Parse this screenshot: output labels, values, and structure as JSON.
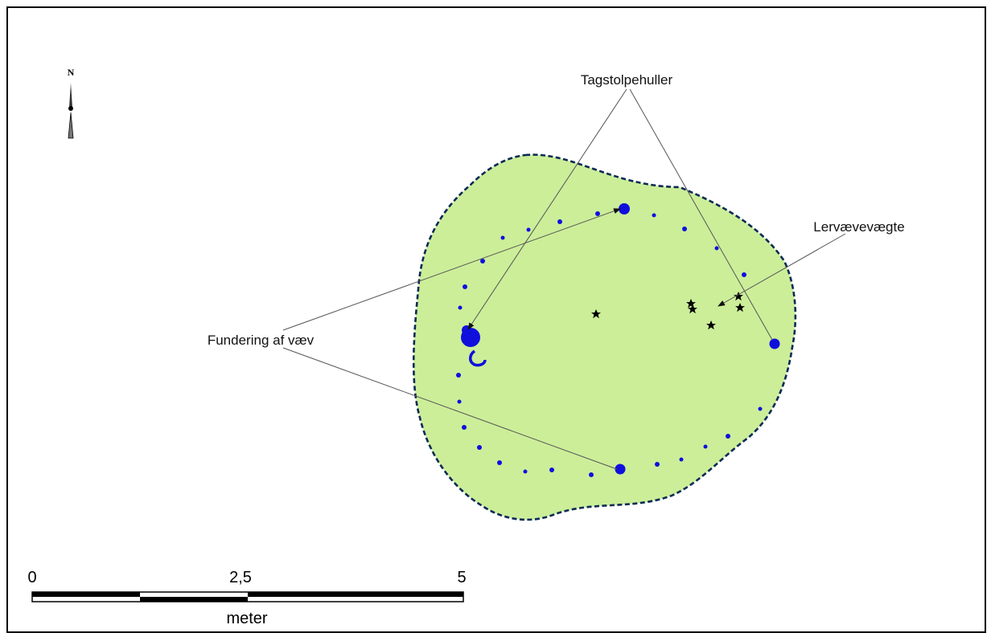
{
  "map": {
    "north_label": "N",
    "annotations": {
      "roof_posts": "Tagstolpehuller",
      "loom_weights": "Lervævevægte",
      "loom_foundation": "Fundering af væv"
    },
    "scale_bar": {
      "ticks": [
        "0",
        "2,5",
        "5"
      ],
      "unit": "meter"
    },
    "colors": {
      "floor_fill": "#ccee99",
      "outline": "#0a2a55",
      "post_hole": "#1010dd",
      "star": "#000000",
      "leader_line": "#555555"
    },
    "symbols": {
      "post_hole": "circle",
      "loom_weight": "star-icon"
    }
  }
}
